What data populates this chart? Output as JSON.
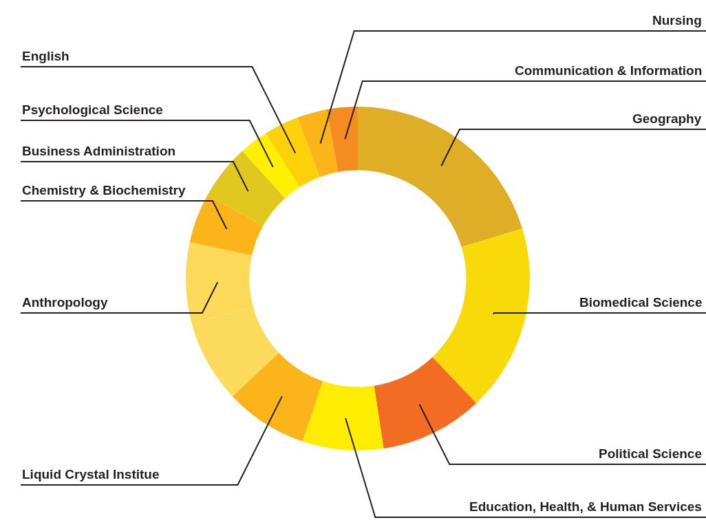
{
  "chart_data": {
    "type": "donut",
    "categories": [
      "Geography",
      "Biomedical Science",
      "Political Science",
      "Education, Health, & Human Services",
      "Liquid Crystal Institue",
      null,
      "Anthropology",
      "Chemistry & Biochemistry",
      "Business Administration",
      "Psychological Science",
      "English",
      "Nursing",
      "Communication & Information"
    ],
    "values": [
      20.3,
      17.6,
      9.7,
      7.6,
      7.8,
      7.8,
      7.6,
      4.7,
      5.2,
      2.7,
      3.3,
      2.8,
      2.9
    ],
    "colors": [
      "#dfae27",
      "#f8da0a",
      "#f26d23",
      "#feed00",
      "#fbb41a",
      "#fcdb5c",
      "#fdd95a",
      "#fbb41a",
      "#e0c820",
      "#fff000",
      "#fdd10a",
      "#fbb41a",
      "#f48c22"
    ]
  }
}
